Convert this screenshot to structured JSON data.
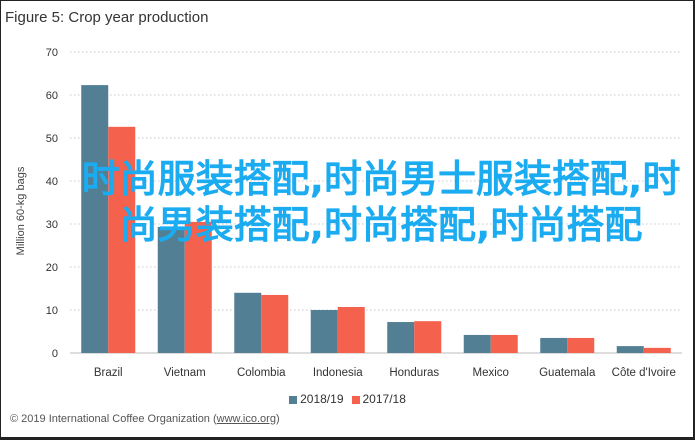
{
  "chart_data": {
    "type": "bar",
    "title": "Figure 5: Crop year production",
    "xlabel": "",
    "ylabel": "Million 60-kg bags",
    "ylim": [
      0,
      70
    ],
    "yticks": [
      0,
      10,
      20,
      30,
      40,
      50,
      60,
      70
    ],
    "grid": true,
    "legend_position": "bottom",
    "categories": [
      "Brazil",
      "Vietnam",
      "Colombia",
      "Indonesia",
      "Honduras",
      "Mexico",
      "Guatemala",
      "Côte d'Ivoire"
    ],
    "series": [
      {
        "name": "2018/19",
        "color": "#527f94",
        "values": [
          62.3,
          29.3,
          14.0,
          10.0,
          7.2,
          4.2,
          3.5,
          1.6
        ]
      },
      {
        "name": "2017/18",
        "color": "#f4614d",
        "values": [
          52.6,
          30.5,
          13.5,
          10.7,
          7.4,
          4.2,
          3.5,
          1.2
        ]
      }
    ]
  },
  "footer": {
    "text": "© 2019 International Coffee Organization (",
    "link": "www.ico.org",
    "close": ")"
  },
  "overlay_text": "时尚服装搭配,时尚男士服装搭配,时尚男装搭配,时尚搭配,时尚搭配"
}
